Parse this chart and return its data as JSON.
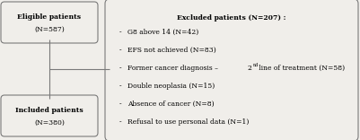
{
  "eligible_title": "Eligible patients",
  "eligible_n": "(N=587)",
  "included_title": "Included patients",
  "included_n": "(N=380)",
  "excluded_title": "Excluded patients (N=207) :",
  "excluded_items": [
    "G8 above 14 (N=42)",
    "EFS not achieved (N=83)",
    "Former cancer diagnosis – 2ⁿᵈ line of treatment (N=58)",
    "Double neoplasia (N=15)",
    "Absence of cancer (N=8)",
    "Refusal to use personal data (N=1)"
  ],
  "excluded_items_raw": [
    "G8 above 14 (N=42)",
    "EFS not achieved (N=83)",
    "Former cancer diagnosis – 2nd line of treatment (N=58)",
    "Double neoplasia (N=15)",
    "Absence of cancer (N=8)",
    "Refusal to use personal data (N=1)"
  ],
  "bg_color": "#f0eeea",
  "box_face": "#f0eeea",
  "box_edge": "#7a7a7a",
  "line_color": "#7a7a7a"
}
